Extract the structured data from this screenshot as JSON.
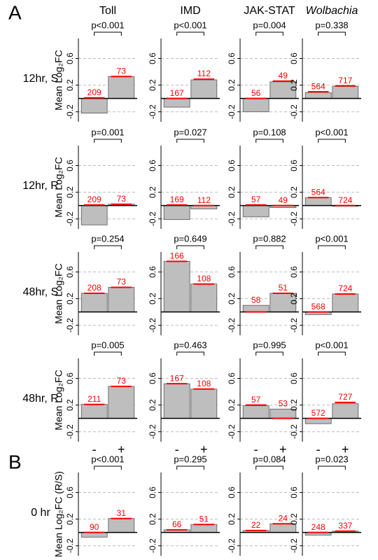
{
  "labels": [
    "A",
    "B"
  ],
  "columns": [
    "Toll",
    "IMD",
    "JAK-STAT",
    "Wolbachia"
  ],
  "rows": [
    "12hr, S",
    "12hr, R",
    "48hr, S",
    "48hr, R",
    "0 hr"
  ],
  "chart_data": [
    {
      "type": "bar",
      "ylabel": "Mean Log₂FC",
      "categories": [
        null,
        null
      ],
      "values": [
        -0.22,
        0.33
      ],
      "markers": [
        0.01,
        0.33
      ],
      "n": [
        209,
        73
      ],
      "p_label": "p<0.001",
      "ylim": [
        -0.35,
        0.9
      ],
      "yticks": [
        -0.2,
        0.2,
        0.6
      ],
      "grid": true,
      "color": "#bebebe",
      "marker_color": "#ff0000"
    },
    {
      "type": "bar",
      "categories": [
        null,
        null
      ],
      "values": [
        -0.13,
        0.28
      ],
      "markers": [
        0.0,
        0.29
      ],
      "n": [
        167,
        112
      ],
      "p_label": "p<0.001",
      "ylim": [
        -0.35,
        0.9
      ],
      "yticks": [
        -0.2,
        0.2,
        0.6
      ],
      "grid": true,
      "color": "#bebebe",
      "marker_color": "#ff0000"
    },
    {
      "type": "bar",
      "categories": [
        null,
        null
      ],
      "values": [
        -0.2,
        0.25
      ],
      "markers": [
        0.0,
        0.26
      ],
      "n": [
        56,
        49
      ],
      "p_label": "p=0.004",
      "ylim": [
        -0.35,
        0.9
      ],
      "yticks": [
        -0.2,
        0.2,
        0.6
      ],
      "grid": true,
      "color": "#bebebe",
      "marker_color": "#ff0000"
    },
    {
      "type": "bar",
      "categories": [
        null,
        null
      ],
      "values": [
        0.09,
        0.18
      ],
      "markers": [
        0.1,
        0.19
      ],
      "n": [
        564,
        717
      ],
      "p_label": "p=0.338",
      "ylim": [
        -0.35,
        0.9
      ],
      "yticks": [
        -0.2,
        0.2,
        0.6
      ],
      "grid": true,
      "color": "#bebebe",
      "marker_color": "#ff0000"
    },
    {
      "type": "bar",
      "ylabel": "Mean Log₂FC",
      "categories": [
        null,
        null
      ],
      "values": [
        -0.29,
        0.02
      ],
      "markers": [
        0.01,
        0.02
      ],
      "n": [
        209,
        73
      ],
      "p_label": "p=0.001",
      "ylim": [
        -0.35,
        0.9
      ],
      "yticks": [
        -0.2,
        0.2,
        0.6
      ],
      "grid": true,
      "color": "#bebebe",
      "marker_color": "#ff0000"
    },
    {
      "type": "bar",
      "categories": [
        null,
        null
      ],
      "values": [
        -0.21,
        -0.05
      ],
      "markers": [
        0.01,
        0.0
      ],
      "n": [
        169,
        112
      ],
      "p_label": "p=0.027",
      "ylim": [
        -0.35,
        0.9
      ],
      "yticks": [
        -0.2,
        0.2,
        0.6
      ],
      "grid": true,
      "color": "#bebebe",
      "marker_color": "#ff0000"
    },
    {
      "type": "bar",
      "categories": [
        null,
        null
      ],
      "values": [
        -0.17,
        -0.03
      ],
      "markers": [
        0.01,
        0.0
      ],
      "n": [
        57,
        49
      ],
      "p_label": "p=0.108",
      "ylim": [
        -0.35,
        0.9
      ],
      "yticks": [
        -0.2,
        0.2,
        0.6
      ],
      "grid": true,
      "color": "#bebebe",
      "marker_color": "#ff0000"
    },
    {
      "type": "bar",
      "categories": [
        null,
        null
      ],
      "values": [
        0.12,
        -0.01
      ],
      "markers": [
        0.12,
        0.0
      ],
      "n": [
        564,
        724
      ],
      "p_label": "p<0.001",
      "ylim": [
        -0.35,
        0.9
      ],
      "yticks": [
        -0.2,
        0.2,
        0.6
      ],
      "grid": true,
      "color": "#bebebe",
      "marker_color": "#ff0000"
    },
    {
      "type": "bar",
      "ylabel": "Mean Log₂FC",
      "categories": [
        null,
        null
      ],
      "values": [
        0.28,
        0.37
      ],
      "markers": [
        0.28,
        0.37
      ],
      "n": [
        208,
        73
      ],
      "p_label": "p=0.254",
      "ylim": [
        -0.35,
        0.9
      ],
      "yticks": [
        -0.2,
        0.2,
        0.6
      ],
      "grid": true,
      "color": "#bebebe",
      "marker_color": "#ff0000"
    },
    {
      "type": "bar",
      "categories": [
        null,
        null
      ],
      "values": [
        0.76,
        0.42
      ],
      "markers": [
        0.76,
        0.42
      ],
      "n": [
        166,
        108
      ],
      "p_label": "p=0.649",
      "ylim": [
        -0.35,
        0.9
      ],
      "yticks": [
        -0.2,
        0.2,
        0.6
      ],
      "grid": true,
      "color": "#bebebe",
      "marker_color": "#ff0000"
    },
    {
      "type": "bar",
      "categories": [
        null,
        null
      ],
      "values": [
        0.1,
        0.28
      ],
      "markers": [
        0.0,
        0.28
      ],
      "n": [
        58,
        51
      ],
      "p_label": "p=0.882",
      "ylim": [
        -0.35,
        0.9
      ],
      "yticks": [
        -0.2,
        0.2,
        0.6
      ],
      "grid": true,
      "color": "#bebebe",
      "marker_color": "#ff0000"
    },
    {
      "type": "bar",
      "categories": [
        null,
        null
      ],
      "values": [
        -0.04,
        0.27
      ],
      "markers": [
        0.0,
        0.27
      ],
      "n": [
        568,
        724
      ],
      "p_label": "p<0.001",
      "ylim": [
        -0.35,
        0.9
      ],
      "yticks": [
        -0.2,
        0.2,
        0.6
      ],
      "grid": true,
      "color": "#bebebe",
      "marker_color": "#ff0000"
    },
    {
      "type": "bar",
      "ylabel": "Mean Log₂FC",
      "categories": [
        "-",
        "+"
      ],
      "values": [
        0.21,
        0.48
      ],
      "markers": [
        0.21,
        0.48
      ],
      "n": [
        211,
        73
      ],
      "p_label": "p=0.005",
      "ylim": [
        -0.35,
        0.9
      ],
      "yticks": [
        -0.2,
        0.2,
        0.6
      ],
      "grid": true,
      "color": "#bebebe",
      "marker_color": "#ff0000"
    },
    {
      "type": "bar",
      "categories": [
        "-",
        "+"
      ],
      "values": [
        0.52,
        0.44
      ],
      "markers": [
        0.52,
        0.44
      ],
      "n": [
        167,
        108
      ],
      "p_label": "p=0.463",
      "ylim": [
        -0.35,
        0.9
      ],
      "yticks": [
        -0.2,
        0.2,
        0.6
      ],
      "grid": true,
      "color": "#bebebe",
      "marker_color": "#ff0000"
    },
    {
      "type": "bar",
      "categories": [
        "-",
        "+"
      ],
      "values": [
        0.19,
        0.14
      ],
      "markers": [
        0.2,
        0.0
      ],
      "n": [
        57,
        53
      ],
      "p_label": "p=0.995",
      "ylim": [
        -0.35,
        0.9
      ],
      "yticks": [
        -0.2,
        0.2,
        0.6
      ],
      "grid": true,
      "color": "#bebebe",
      "marker_color": "#ff0000"
    },
    {
      "type": "bar",
      "categories": [
        "-",
        "+"
      ],
      "values": [
        -0.08,
        0.22
      ],
      "markers": [
        0.0,
        0.24
      ],
      "n": [
        572,
        727
      ],
      "p_label": "p<0.001",
      "ylim": [
        -0.35,
        0.9
      ],
      "yticks": [
        -0.2,
        0.2,
        0.6
      ],
      "grid": true,
      "color": "#bebebe",
      "marker_color": "#ff0000"
    },
    {
      "type": "bar",
      "ylabel": "Mean Log₂FC (R/S)",
      "categories": [
        "-",
        "+"
      ],
      "values": [
        -0.07,
        0.21
      ],
      "markers": [
        0.0,
        0.21
      ],
      "n": [
        90,
        31
      ],
      "p_label": "p<0.001",
      "ylim": [
        -0.35,
        0.9
      ],
      "yticks": [
        -0.2,
        0.2,
        0.6
      ],
      "grid": true,
      "color": "#bebebe",
      "marker_color": "#ff0000"
    },
    {
      "type": "bar",
      "categories": [
        "-",
        "+"
      ],
      "values": [
        0.04,
        0.12
      ],
      "markers": [
        0.04,
        0.12
      ],
      "n": [
        66,
        51
      ],
      "p_label": "p=0.295",
      "ylim": [
        -0.35,
        0.9
      ],
      "yticks": [
        -0.2,
        0.2,
        0.6
      ],
      "grid": true,
      "color": "#bebebe",
      "marker_color": "#ff0000"
    },
    {
      "type": "bar",
      "categories": [
        "-",
        "+"
      ],
      "values": [
        0.03,
        0.13
      ],
      "markers": [
        0.03,
        0.13
      ],
      "n": [
        22,
        24
      ],
      "p_label": "p=0.084",
      "ylim": [
        -0.35,
        0.9
      ],
      "yticks": [
        -0.2,
        0.2,
        0.6
      ],
      "grid": true,
      "color": "#bebebe",
      "marker_color": "#ff0000"
    },
    {
      "type": "bar",
      "categories": [
        "-",
        "+"
      ],
      "values": [
        -0.04,
        0.02
      ],
      "markers": [
        0.0,
        0.02
      ],
      "n": [
        248,
        337
      ],
      "p_label": "p=0.023",
      "ylim": [
        -0.35,
        0.9
      ],
      "yticks": [
        -0.2,
        0.2,
        0.6
      ],
      "grid": true,
      "color": "#bebebe",
      "marker_color": "#ff0000"
    }
  ]
}
